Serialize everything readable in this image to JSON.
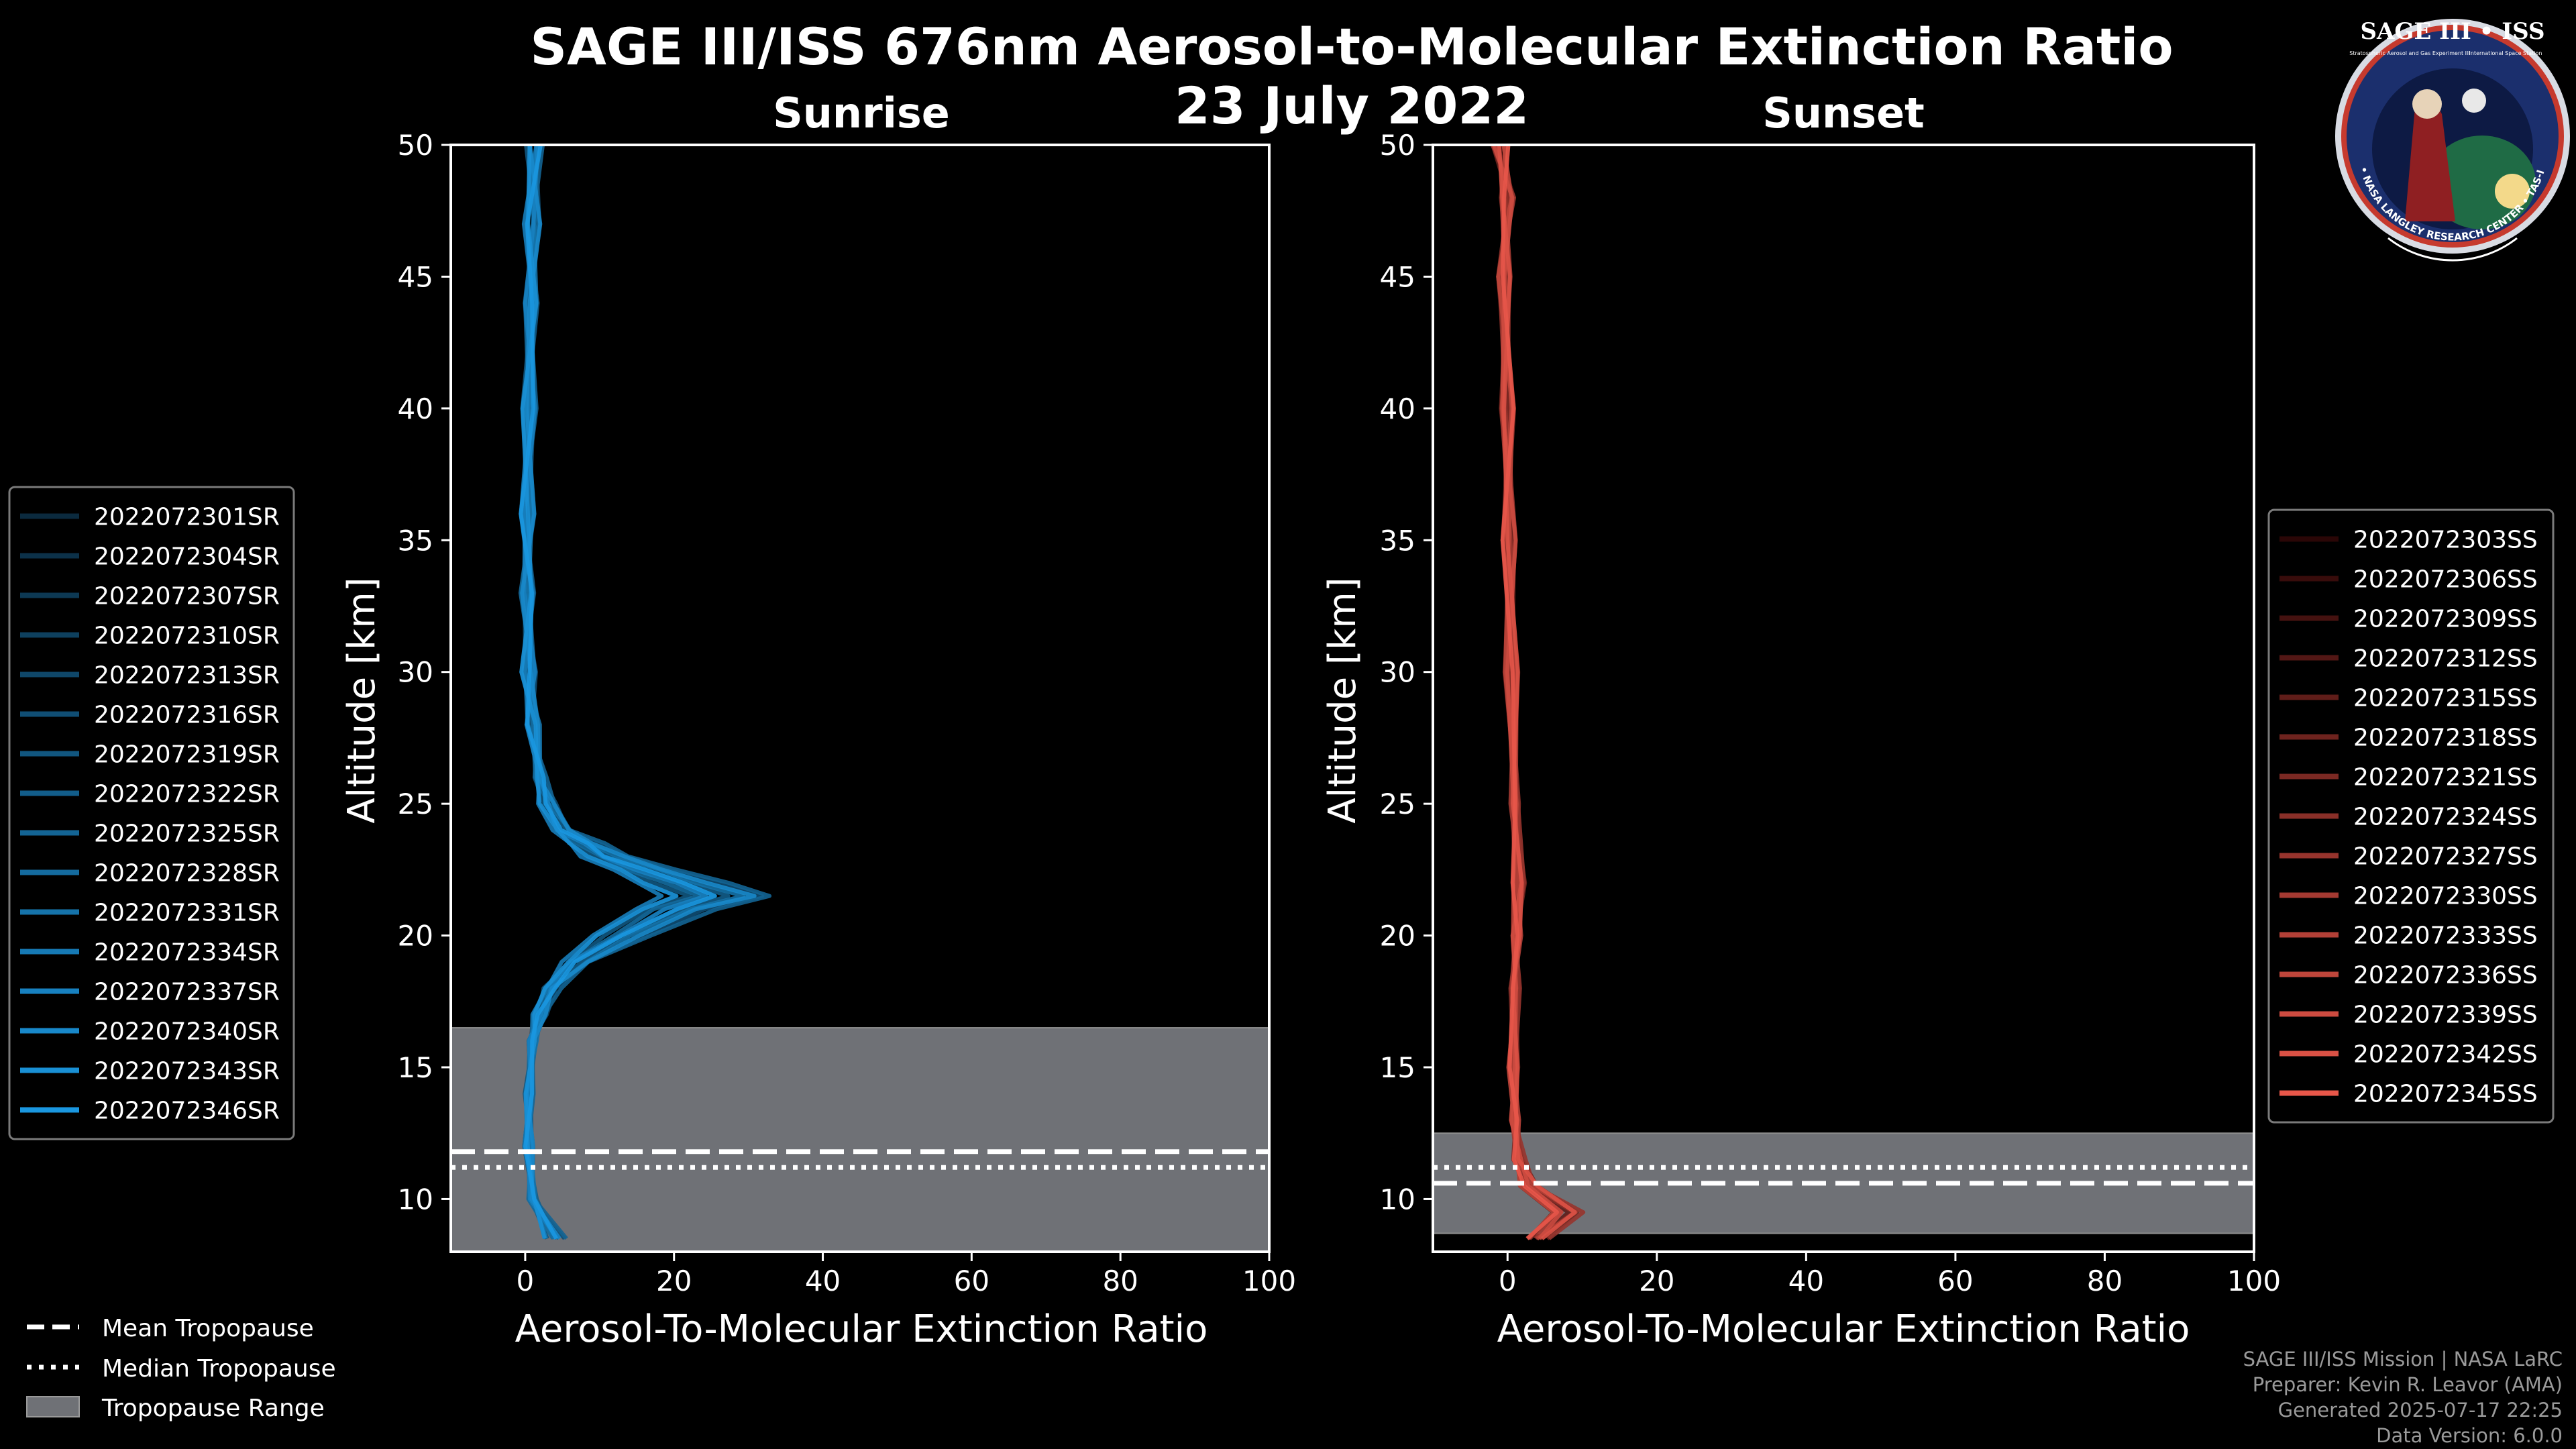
{
  "header": {
    "title": "SAGE III/ISS 676nm Aerosol-to-Molecular Extinction Ratio",
    "date": "23 July 2022"
  },
  "credits": {
    "mission": "SAGE III/ISS Mission | NASA LaRC",
    "preparer": "Preparer: Kevin R. Leavor (AMA)",
    "generated": "Generated 2025-07-17 22:25",
    "version": "Data Version: 6.0.0"
  },
  "logo": {
    "name": "SAGE III • ISS",
    "subtitle_left": "Stratospheric Aerosol and Gas Experiment III",
    "subtitle_right": "International Space Station",
    "ring_text": "BALL • NASA LANGLEY RESEARCH CENTER • TAS-I • ESA"
  },
  "bottom_legend": {
    "mean": "Mean Tropopause",
    "median": "Median Tropopause",
    "range": "Tropopause Range"
  },
  "chart_data": [
    {
      "type": "line",
      "title": "Sunrise",
      "xlabel": "Aerosol-To-Molecular Extinction Ratio",
      "ylabel": "Altitude [km]",
      "xlim": [
        -10,
        100
      ],
      "ylim": [
        8,
        50
      ],
      "xticks": [
        0,
        20,
        40,
        60,
        80,
        100
      ],
      "yticks": [
        10,
        15,
        20,
        25,
        30,
        35,
        40,
        45,
        50
      ],
      "grid": false,
      "tropopause": {
        "mean": 11.8,
        "median": 11.2,
        "range": [
          8,
          16.5
        ]
      },
      "color_start": "#0b2a3e",
      "color_end": "#1a97e0",
      "series_names": [
        "2022072301SR",
        "2022072304SR",
        "2022072307SR",
        "2022072310SR",
        "2022072313SR",
        "2022072316SR",
        "2022072319SR",
        "2022072322SR",
        "2022072325SR",
        "2022072328SR",
        "2022072331SR",
        "2022072334SR",
        "2022072337SR",
        "2022072340SR",
        "2022072343SR",
        "2022072346SR"
      ],
      "altitudes": [
        8.5,
        10,
        12,
        14,
        16,
        17,
        18,
        19,
        20,
        21,
        21.5,
        22,
        22.5,
        23,
        23.5,
        24,
        25,
        26,
        28,
        30,
        33,
        36,
        40,
        44,
        47,
        50
      ],
      "profile_shape": [
        4,
        1,
        0.5,
        0.5,
        1,
        2,
        3.5,
        7,
        13,
        20,
        26,
        21,
        16,
        11,
        8,
        5,
        3,
        2,
        1,
        0.5,
        0.3,
        0.3,
        0.5,
        0.8,
        1,
        1.2
      ]
    },
    {
      "type": "line",
      "title": "Sunset",
      "xlabel": "Aerosol-To-Molecular Extinction Ratio",
      "ylabel": "Altitude [km]",
      "xlim": [
        -10,
        100
      ],
      "ylim": [
        8,
        50
      ],
      "xticks": [
        0,
        20,
        40,
        60,
        80,
        100
      ],
      "yticks": [
        10,
        15,
        20,
        25,
        30,
        35,
        40,
        45,
        50
      ],
      "grid": false,
      "tropopause": {
        "mean": 10.6,
        "median": 11.2,
        "range": [
          8.7,
          12.5
        ]
      },
      "color_start": "#2a0606",
      "color_end": "#e8574a",
      "series_names": [
        "2022072303SS",
        "2022072306SS",
        "2022072309SS",
        "2022072312SS",
        "2022072315SS",
        "2022072318SS",
        "2022072321SS",
        "2022072324SS",
        "2022072327SS",
        "2022072330SS",
        "2022072333SS",
        "2022072336SS",
        "2022072339SS",
        "2022072342SS",
        "2022072345SS"
      ],
      "altitudes": [
        8.5,
        9.5,
        10.5,
        11.5,
        13,
        15,
        18,
        20,
        22,
        25,
        30,
        35,
        40,
        45,
        48,
        50
      ],
      "profile_shape": [
        4,
        8,
        3,
        1.5,
        1,
        0.8,
        1,
        1.2,
        1.5,
        1,
        0.5,
        0.2,
        0,
        -0.5,
        0,
        -1
      ]
    }
  ]
}
